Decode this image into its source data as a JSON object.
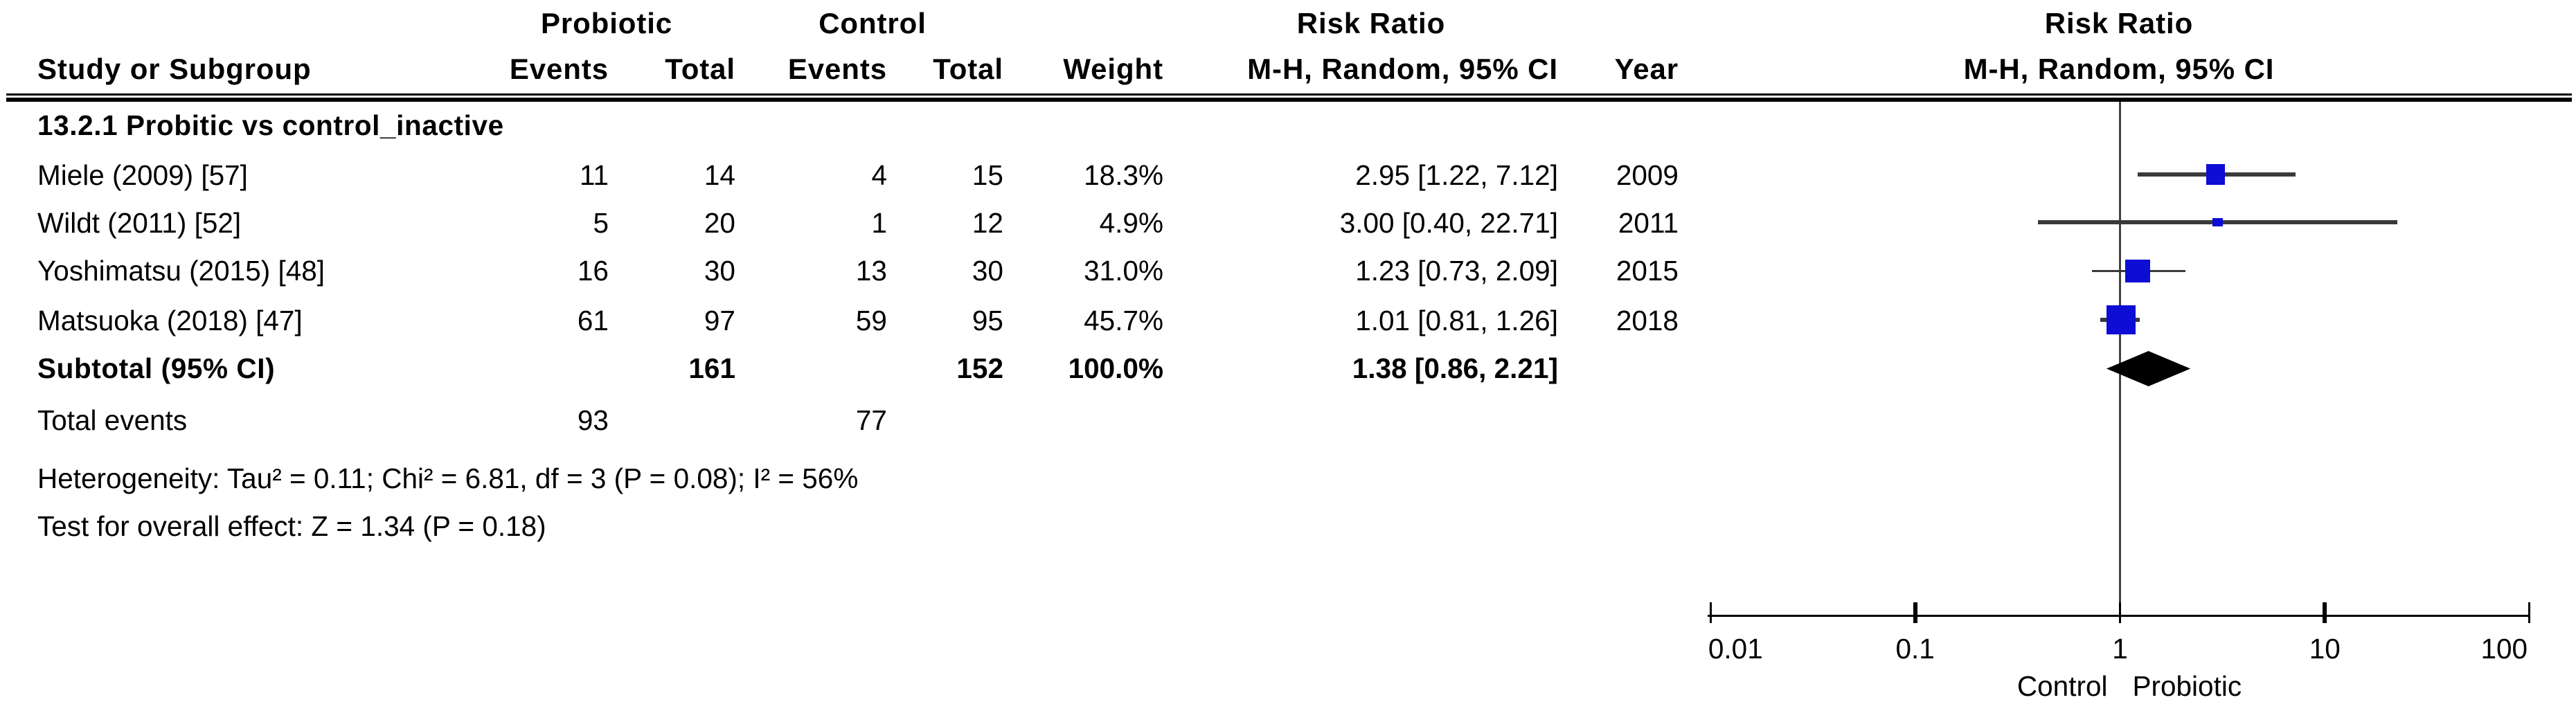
{
  "header": {
    "group1": "Probiotic",
    "group2": "Control",
    "effect_col_title": "Risk Ratio",
    "effect_col_subtitle": "M-H, Random, 95% CI",
    "plot_title": "Risk Ratio",
    "plot_subtitle": "M-H, Random, 95% CI",
    "study_col": "Study or Subgroup",
    "events_col": "Events",
    "total_col": "Total",
    "weight_col": "Weight",
    "year_col": "Year"
  },
  "chart_data": {
    "type": "forest_plot",
    "effect_measure": "Risk Ratio",
    "model": "Mantel-Haenszel, Random effects, 95% CI",
    "subgroup_label": "13.2.1 Probitic vs control_inactive",
    "studies": [
      {
        "name": "Miele (2009) [57]",
        "events1": "11",
        "total1": "14",
        "events2": "4",
        "total2": "15",
        "weight": "18.3%",
        "weight_pct": 18.3,
        "rr": 2.95,
        "ci_low": 1.22,
        "ci_high": 7.12,
        "ci_text": "2.95 [1.22, 7.12]",
        "year": "2009"
      },
      {
        "name": "Wildt (2011) [52]",
        "events1": "5",
        "total1": "20",
        "events2": "1",
        "total2": "12",
        "weight": "4.9%",
        "weight_pct": 4.9,
        "rr": 3.0,
        "ci_low": 0.4,
        "ci_high": 22.71,
        "ci_text": "3.00 [0.40, 22.71]",
        "year": "2011"
      },
      {
        "name": "Yoshimatsu (2015) [48]",
        "events1": "16",
        "total1": "30",
        "events2": "13",
        "total2": "30",
        "weight": "31.0%",
        "weight_pct": 31.0,
        "rr": 1.23,
        "ci_low": 0.73,
        "ci_high": 2.09,
        "ci_text": "1.23 [0.73, 2.09]",
        "year": "2015"
      },
      {
        "name": "Matsuoka (2018) [47]",
        "events1": "61",
        "total1": "97",
        "events2": "59",
        "total2": "95",
        "weight": "45.7%",
        "weight_pct": 45.7,
        "rr": 1.01,
        "ci_low": 0.81,
        "ci_high": 1.26,
        "ci_text": "1.01 [0.81, 1.26]",
        "year": "2018"
      }
    ],
    "subtotal": {
      "label": "Subtotal (95% CI)",
      "total1": "161",
      "total2": "152",
      "weight": "100.0%",
      "rr": 1.38,
      "ci_low": 0.86,
      "ci_high": 2.21,
      "ci_text": "1.38 [0.86, 2.21]"
    },
    "total_events": {
      "label": "Total events",
      "events1": "93",
      "events2": "77"
    },
    "heterogeneity": "Heterogeneity: Tau² = 0.11; Chi² = 6.81, df = 3 (P = 0.08); I² = 56%",
    "overall_effect": "Test for overall effect: Z = 1.34 (P = 0.18)",
    "axis": {
      "scale": "log",
      "min": 0.01,
      "max": 100,
      "ticks": [
        0.01,
        0.1,
        1,
        10,
        100
      ],
      "tick_labels": [
        "0.01",
        "0.1",
        "1",
        "10",
        "100"
      ],
      "left_label": "Control",
      "right_label": "Probiotic"
    },
    "colors": {
      "square": "#0d0dd6",
      "diamond": "#000000",
      "ci_line": "#3a3a3a",
      "axis_line": "#000000",
      "null_line": "#424242",
      "text": "#000000",
      "background": "#ffffff"
    }
  }
}
